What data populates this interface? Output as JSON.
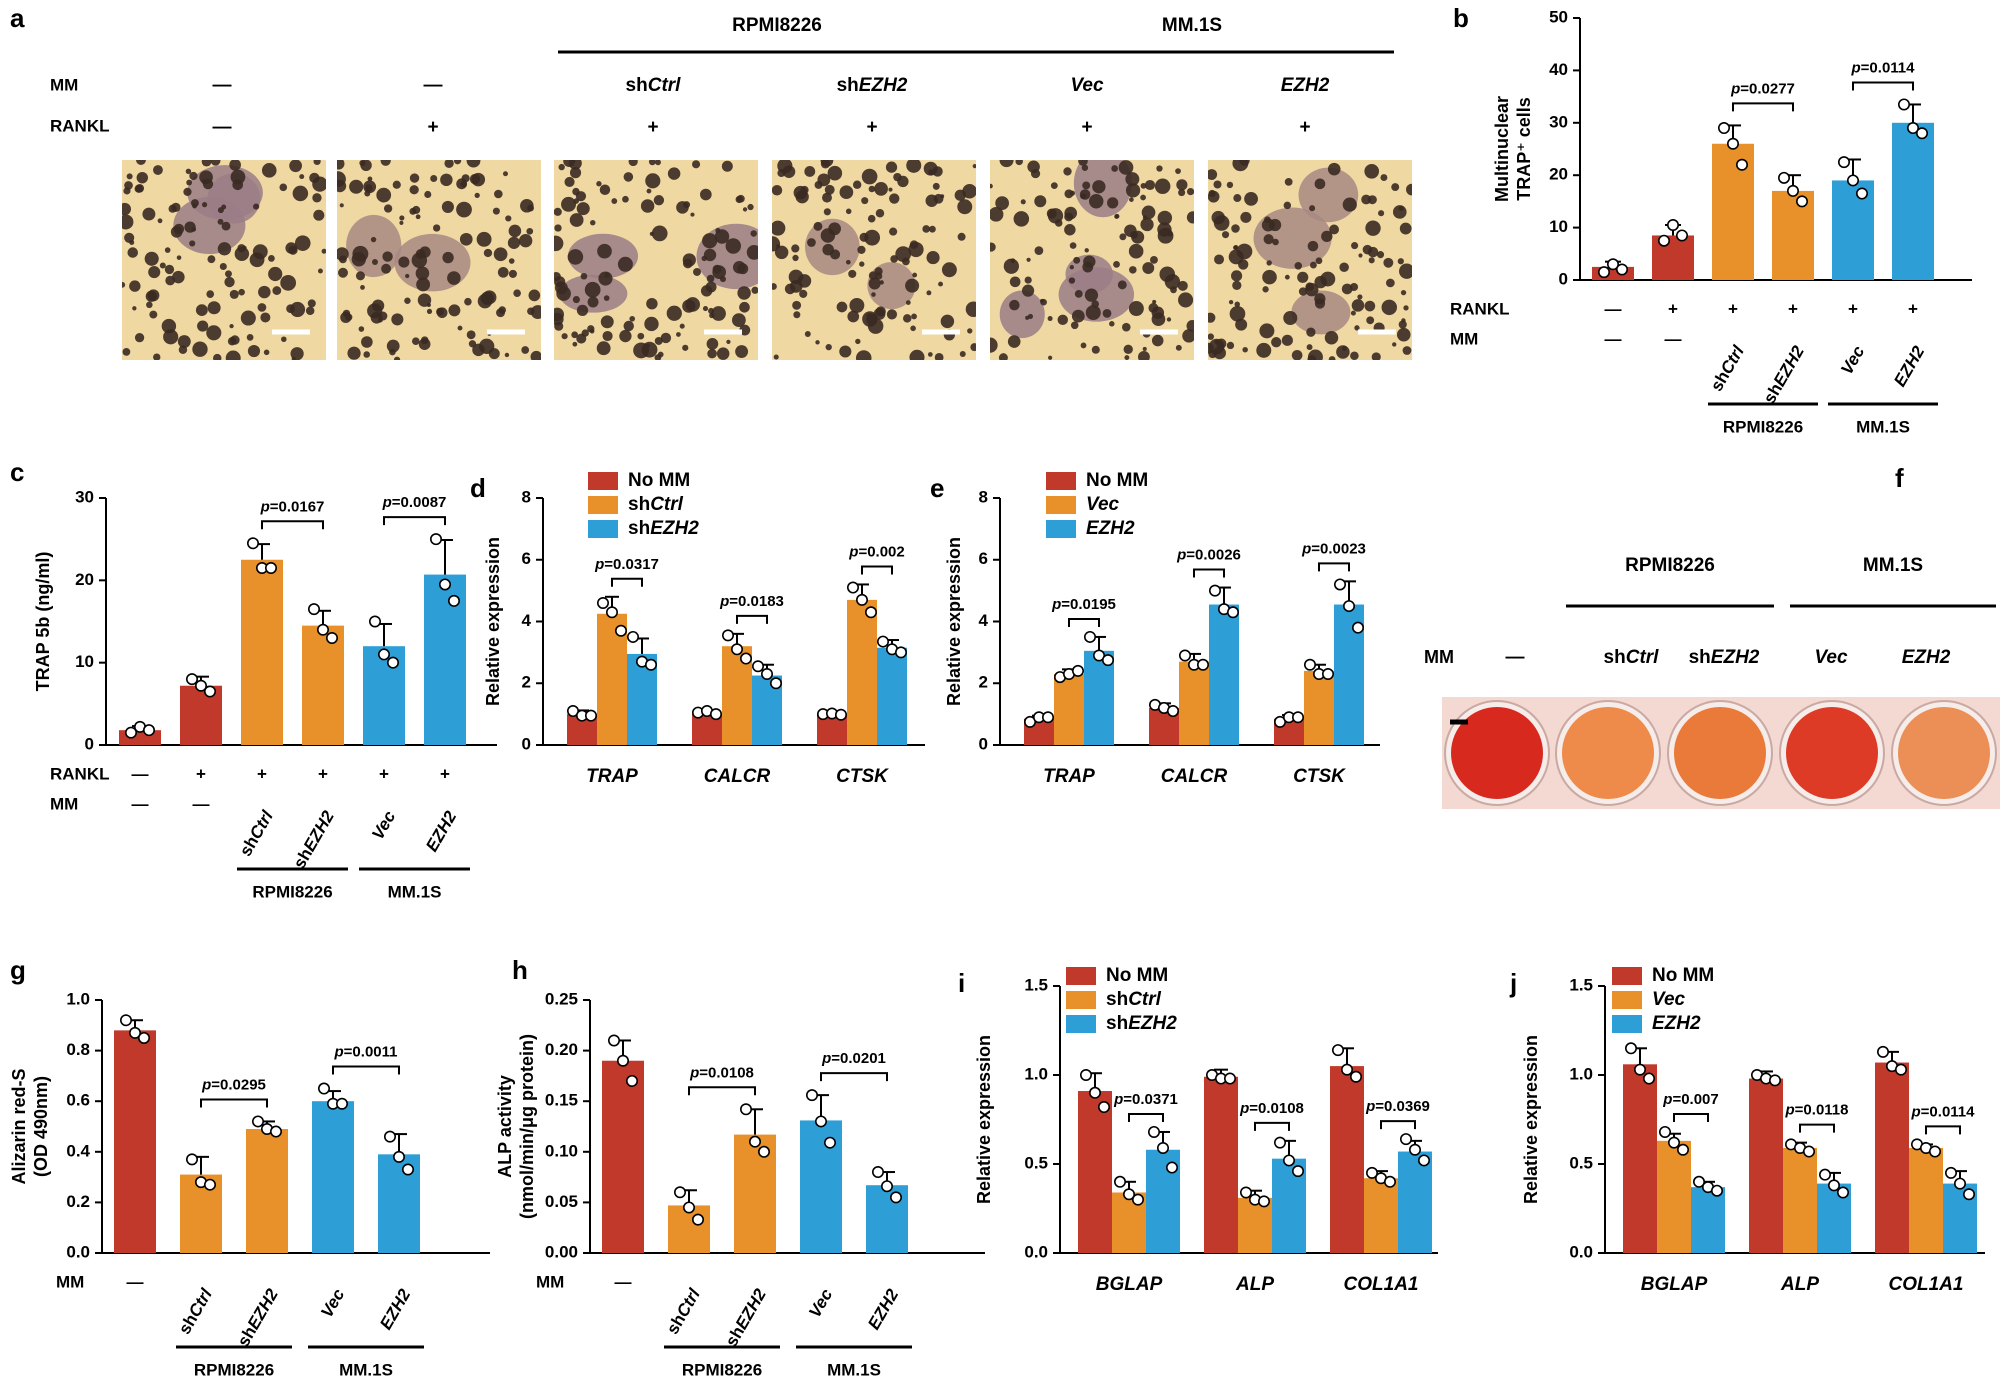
{
  "colors": {
    "red": "#c0392b",
    "orange": "#e8902a",
    "blue": "#2e9fd6",
    "stain": "#f0d8a2",
    "cell": "#3a2a22",
    "well": "#d8291f"
  },
  "panels": {
    "a": {
      "letter": "a",
      "row_labels": {
        "mm": "MM",
        "rankl": "RANKL"
      },
      "groups": [
        {
          "label": "RPMI8226",
          "cols": [
            2,
            3
          ]
        },
        {
          "label": "MM.1S",
          "cols": [
            4,
            5
          ]
        }
      ],
      "columns": [
        {
          "mm": "—",
          "rankl": "—"
        },
        {
          "mm": "—",
          "rankl": "+"
        },
        {
          "mm": "shCtrl",
          "rankl": "+"
        },
        {
          "mm": "shEZH2",
          "rankl": "+"
        },
        {
          "mm": "Vec",
          "rankl": "+"
        },
        {
          "mm": "EZH2",
          "rankl": "+"
        }
      ]
    },
    "b": {
      "letter": "b",
      "x_labels": [
        "—",
        "+",
        "+",
        "+",
        "+",
        "+"
      ],
      "x_row_label": "RANKL",
      "mm_row_label": "MM",
      "mm_labels": [
        "—",
        "—",
        "shCtrl",
        "shEZH2",
        "Vec",
        "EZH2"
      ],
      "groups": [
        {
          "label": "RPMI8226",
          "cols": [
            2,
            3
          ]
        },
        {
          "label": "MM.1S",
          "cols": [
            4,
            5
          ]
        }
      ],
      "p_values": [
        {
          "text": "p=0.0277",
          "pair": [
            2,
            3
          ]
        },
        {
          "text": "p=0.0114",
          "pair": [
            4,
            5
          ]
        }
      ]
    },
    "c": {
      "letter": "c",
      "x_row_label": "RANKL",
      "x_labels": [
        "—",
        "+",
        "+",
        "+",
        "+",
        "+"
      ],
      "mm_row_label": "MM",
      "mm_labels": [
        "—",
        "—",
        "shCtrl",
        "shEZH2",
        "Vec",
        "EZH2"
      ],
      "groups": [
        {
          "label": "RPMI8226",
          "cols": [
            2,
            3
          ]
        },
        {
          "label": "MM.1S",
          "cols": [
            4,
            5
          ]
        }
      ],
      "p_values": [
        {
          "text": "p=0.0167",
          "pair": [
            2,
            3
          ]
        },
        {
          "text": "p=0.0087",
          "pair": [
            4,
            5
          ]
        }
      ]
    },
    "d": {
      "letter": "d",
      "legend": [
        "No MM",
        "shCtrl",
        "shEZH2"
      ],
      "p_values": [
        "p=0.0317",
        "p=0.0183",
        "p=0.002"
      ]
    },
    "e": {
      "letter": "e",
      "legend": [
        "No MM",
        "Vec",
        "EZH2"
      ],
      "p_values": [
        "p=0.0195",
        "p=0.0026",
        "p=0.0023"
      ]
    },
    "f": {
      "letter": "f",
      "row_label": "MM",
      "wells": [
        "—",
        "shCtrl",
        "shEZH2",
        "Vec",
        "EZH2"
      ],
      "groups": [
        {
          "label": "RPMI8226",
          "cols": [
            1,
            2
          ]
        },
        {
          "label": "MM.1S",
          "cols": [
            3,
            4
          ]
        }
      ]
    },
    "g": {
      "letter": "g",
      "mm_row_label": "MM",
      "mm_labels": [
        "—",
        "shCtrl",
        "shEZH2",
        "Vec",
        "EZH2"
      ],
      "groups": [
        {
          "label": "RPMI8226",
          "cols": [
            1,
            2
          ]
        },
        {
          "label": "MM.1S",
          "cols": [
            3,
            4
          ]
        }
      ],
      "p_values": [
        {
          "text": "p=0.0295",
          "pair": [
            1,
            2
          ]
        },
        {
          "text": "p=0.0011",
          "pair": [
            3,
            4
          ]
        }
      ]
    },
    "h": {
      "letter": "h",
      "mm_row_label": "MM",
      "mm_labels": [
        "—",
        "shCtrl",
        "shEZH2",
        "Vec",
        "EZH2"
      ],
      "groups": [
        {
          "label": "RPMI8226",
          "cols": [
            1,
            2
          ]
        },
        {
          "label": "MM.1S",
          "cols": [
            3,
            4
          ]
        }
      ],
      "p_values": [
        {
          "text": "p=0.0108",
          "pair": [
            1,
            2
          ]
        },
        {
          "text": "p=0.0201",
          "pair": [
            3,
            4
          ]
        }
      ]
    },
    "i": {
      "letter": "i",
      "legend": [
        "No MM",
        "shCtrl",
        "shEZH2"
      ],
      "p_values": [
        "p=0.0371",
        "p=0.0108",
        "p=0.0369"
      ]
    },
    "j": {
      "letter": "j",
      "legend": [
        "No MM",
        "Vec",
        "EZH2"
      ],
      "p_values": [
        "p=0.007",
        "p=0.0118",
        "p=0.0114"
      ]
    }
  },
  "chart_data": [
    {
      "panel": "b",
      "type": "bar",
      "ylabel": "Multinuclear TRAP⁺ cells",
      "ylim": [
        0,
        50
      ],
      "yticks": [
        0,
        10,
        20,
        30,
        40,
        50
      ],
      "categories": [
        "—/—",
        "+/—",
        "+/shCtrl",
        "+/shEZH2",
        "+/Vec",
        "+/EZH2"
      ],
      "values": [
        2.5,
        8.5,
        26,
        17,
        19,
        30
      ],
      "errors": [
        1,
        2,
        3.5,
        3,
        4,
        3.5
      ],
      "points": [
        [
          1.5,
          3,
          2
        ],
        [
          7.5,
          10.5,
          8.5
        ],
        [
          29,
          26,
          22
        ],
        [
          19.5,
          17,
          15
        ],
        [
          22.5,
          19,
          16.5
        ],
        [
          33.5,
          29,
          28
        ]
      ],
      "bar_colors": [
        "red",
        "red",
        "orange",
        "orange",
        "blue",
        "blue"
      ]
    },
    {
      "panel": "c",
      "type": "bar",
      "ylabel": "TRAP 5b (ng/ml)",
      "ylim": [
        0,
        30
      ],
      "yticks": [
        0,
        10,
        20,
        30
      ],
      "categories": [
        "—/—",
        "+/—",
        "+/shCtrl",
        "+/shEZH2",
        "+/Vec",
        "+/EZH2"
      ],
      "values": [
        1.8,
        7.2,
        22.5,
        14.5,
        12,
        20.7
      ],
      "errors": [
        0.5,
        1.1,
        1.9,
        1.8,
        2.7,
        4.2
      ],
      "points": [
        [
          1.5,
          2.2,
          1.8
        ],
        [
          8,
          7.2,
          6.5
        ],
        [
          24.5,
          21.5,
          21.5
        ],
        [
          16.5,
          14,
          13
        ],
        [
          15,
          11,
          10
        ],
        [
          25,
          19.5,
          17.5
        ]
      ],
      "bar_colors": [
        "red",
        "red",
        "orange",
        "orange",
        "blue",
        "blue"
      ]
    },
    {
      "panel": "d",
      "type": "bar",
      "ylabel": "Relative expression",
      "ylim": [
        0,
        8
      ],
      "yticks": [
        0,
        2,
        4,
        6,
        8
      ],
      "categories": [
        "TRAP",
        "CALCR",
        "CTSK"
      ],
      "series": [
        {
          "name": "No MM",
          "values": [
            1,
            1,
            1
          ],
          "errors": [
            0.12,
            0.1,
            0.06
          ],
          "points": [
            [
              1.1,
              0.95,
              0.95
            ],
            [
              1.05,
              1.1,
              1
            ],
            [
              1,
              1.02,
              0.98
            ]
          ],
          "color": "red"
        },
        {
          "name": "shCtrl",
          "values": [
            4.25,
            3.2,
            4.7
          ],
          "errors": [
            0.55,
            0.4,
            0.5
          ],
          "points": [
            [
              4.6,
              4.3,
              3.7
            ],
            [
              3.55,
              3.1,
              2.8
            ],
            [
              5.1,
              4.7,
              4.3
            ]
          ],
          "color": "orange"
        },
        {
          "name": "shEZH2",
          "values": [
            2.95,
            2.25,
            3.15
          ],
          "errors": [
            0.5,
            0.35,
            0.25
          ],
          "points": [
            [
              3.5,
              2.7,
              2.6
            ],
            [
              2.55,
              2.3,
              2
            ],
            [
              3.35,
              3.1,
              3
            ]
          ],
          "color": "blue"
        }
      ]
    },
    {
      "panel": "e",
      "type": "bar",
      "ylabel": "Relative expression",
      "ylim": [
        0,
        8
      ],
      "yticks": [
        0,
        2,
        4,
        6,
        8
      ],
      "categories": [
        "TRAP",
        "CALCR",
        "CTSK"
      ],
      "series": [
        {
          "name": "No MM",
          "values": [
            0.85,
            1.2,
            0.85
          ],
          "errors": [
            0.1,
            0.15,
            0.12
          ],
          "points": [
            [
              0.75,
              0.9,
              0.9
            ],
            [
              1.3,
              1.2,
              1.1
            ],
            [
              0.75,
              0.9,
              0.9
            ]
          ],
          "color": "red"
        },
        {
          "name": "Vec",
          "values": [
            2.3,
            2.7,
            2.4
          ],
          "errors": [
            0.15,
            0.25,
            0.2
          ],
          "points": [
            [
              2.2,
              2.3,
              2.4
            ],
            [
              2.9,
              2.6,
              2.6
            ],
            [
              2.6,
              2.3,
              2.3
            ]
          ],
          "color": "orange"
        },
        {
          "name": "EZH2",
          "values": [
            3.05,
            4.55,
            4.55
          ],
          "errors": [
            0.45,
            0.55,
            0.75
          ],
          "points": [
            [
              3.5,
              2.9,
              2.75
            ],
            [
              5,
              4.4,
              4.3
            ],
            [
              5.2,
              4.5,
              3.8
            ]
          ],
          "color": "blue"
        }
      ]
    },
    {
      "panel": "g",
      "type": "bar",
      "ylabel": "Alizarin red-S (OD 490nm)",
      "ylim": [
        0,
        1.0
      ],
      "yticks": [
        0,
        0.2,
        0.4,
        0.6,
        0.8,
        1.0
      ],
      "categories": [
        "—",
        "shCtrl",
        "shEZH2",
        "Vec",
        "EZH2"
      ],
      "values": [
        0.88,
        0.31,
        0.49,
        0.6,
        0.39
      ],
      "errors": [
        0.04,
        0.07,
        0.03,
        0.04,
        0.08
      ],
      "points": [
        [
          0.92,
          0.87,
          0.85
        ],
        [
          0.37,
          0.28,
          0.27
        ],
        [
          0.52,
          0.49,
          0.48
        ],
        [
          0.65,
          0.59,
          0.59
        ],
        [
          0.46,
          0.38,
          0.33
        ]
      ],
      "bar_colors": [
        "red",
        "orange",
        "orange",
        "blue",
        "blue"
      ]
    },
    {
      "panel": "h",
      "type": "bar",
      "ylabel": "ALP activity (nmol/min/μg protein)",
      "ylim": [
        0,
        0.25
      ],
      "yticks": [
        0,
        0.05,
        0.1,
        0.15,
        0.2,
        0.25
      ],
      "categories": [
        "—",
        "shCtrl",
        "shEZH2",
        "Vec",
        "EZH2"
      ],
      "values": [
        0.19,
        0.047,
        0.117,
        0.131,
        0.067
      ],
      "errors": [
        0.02,
        0.015,
        0.025,
        0.025,
        0.013
      ],
      "points": [
        [
          0.21,
          0.19,
          0.17
        ],
        [
          0.06,
          0.045,
          0.033
        ],
        [
          0.142,
          0.11,
          0.1
        ],
        [
          0.156,
          0.13,
          0.109
        ],
        [
          0.08,
          0.066,
          0.055
        ]
      ],
      "bar_colors": [
        "red",
        "orange",
        "orange",
        "blue",
        "blue"
      ]
    },
    {
      "panel": "i",
      "type": "bar",
      "ylabel": "Relative expression",
      "ylim": [
        0,
        1.5
      ],
      "yticks": [
        0,
        0.5,
        1.0,
        1.5
      ],
      "categories": [
        "BGLAP",
        "ALP",
        "COL1A1"
      ],
      "series": [
        {
          "name": "No MM",
          "values": [
            0.91,
            0.99,
            1.05
          ],
          "errors": [
            0.1,
            0.04,
            0.1
          ],
          "points": [
            [
              1,
              0.9,
              0.82
            ],
            [
              1,
              0.98,
              0.98
            ],
            [
              1.14,
              1.03,
              0.99
            ]
          ],
          "color": "red"
        },
        {
          "name": "shCtrl",
          "values": [
            0.34,
            0.31,
            0.42
          ],
          "errors": [
            0.06,
            0.04,
            0.04
          ],
          "points": [
            [
              0.4,
              0.33,
              0.3
            ],
            [
              0.34,
              0.3,
              0.29
            ],
            [
              0.45,
              0.42,
              0.4
            ]
          ],
          "color": "orange"
        },
        {
          "name": "shEZH2",
          "values": [
            0.58,
            0.53,
            0.57
          ],
          "errors": [
            0.1,
            0.1,
            0.06
          ],
          "points": [
            [
              0.68,
              0.59,
              0.48
            ],
            [
              0.62,
              0.52,
              0.46
            ],
            [
              0.64,
              0.58,
              0.52
            ]
          ],
          "color": "blue"
        }
      ]
    },
    {
      "panel": "j",
      "type": "bar",
      "ylabel": "Relative expression",
      "ylim": [
        0,
        1.5
      ],
      "yticks": [
        0,
        0.5,
        1.0,
        1.5
      ],
      "categories": [
        "BGLAP",
        "ALP",
        "COL1A1"
      ],
      "series": [
        {
          "name": "No MM",
          "values": [
            1.06,
            0.98,
            1.07
          ],
          "errors": [
            0.09,
            0.04,
            0.06
          ],
          "points": [
            [
              1.15,
              1.03,
              0.98
            ],
            [
              1,
              0.98,
              0.97
            ],
            [
              1.13,
              1.05,
              1.03
            ]
          ],
          "color": "red"
        },
        {
          "name": "Vec",
          "values": [
            0.63,
            0.59,
            0.59
          ],
          "errors": [
            0.04,
            0.03,
            0.02
          ],
          "points": [
            [
              0.68,
              0.62,
              0.58
            ],
            [
              0.61,
              0.59,
              0.57
            ],
            [
              0.61,
              0.59,
              0.57
            ]
          ],
          "color": "orange"
        },
        {
          "name": "EZH2",
          "values": [
            0.37,
            0.39,
            0.39
          ],
          "errors": [
            0.03,
            0.06,
            0.07
          ],
          "points": [
            [
              0.4,
              0.37,
              0.35
            ],
            [
              0.44,
              0.38,
              0.34
            ],
            [
              0.45,
              0.39,
              0.33
            ]
          ],
          "color": "blue"
        }
      ]
    }
  ]
}
